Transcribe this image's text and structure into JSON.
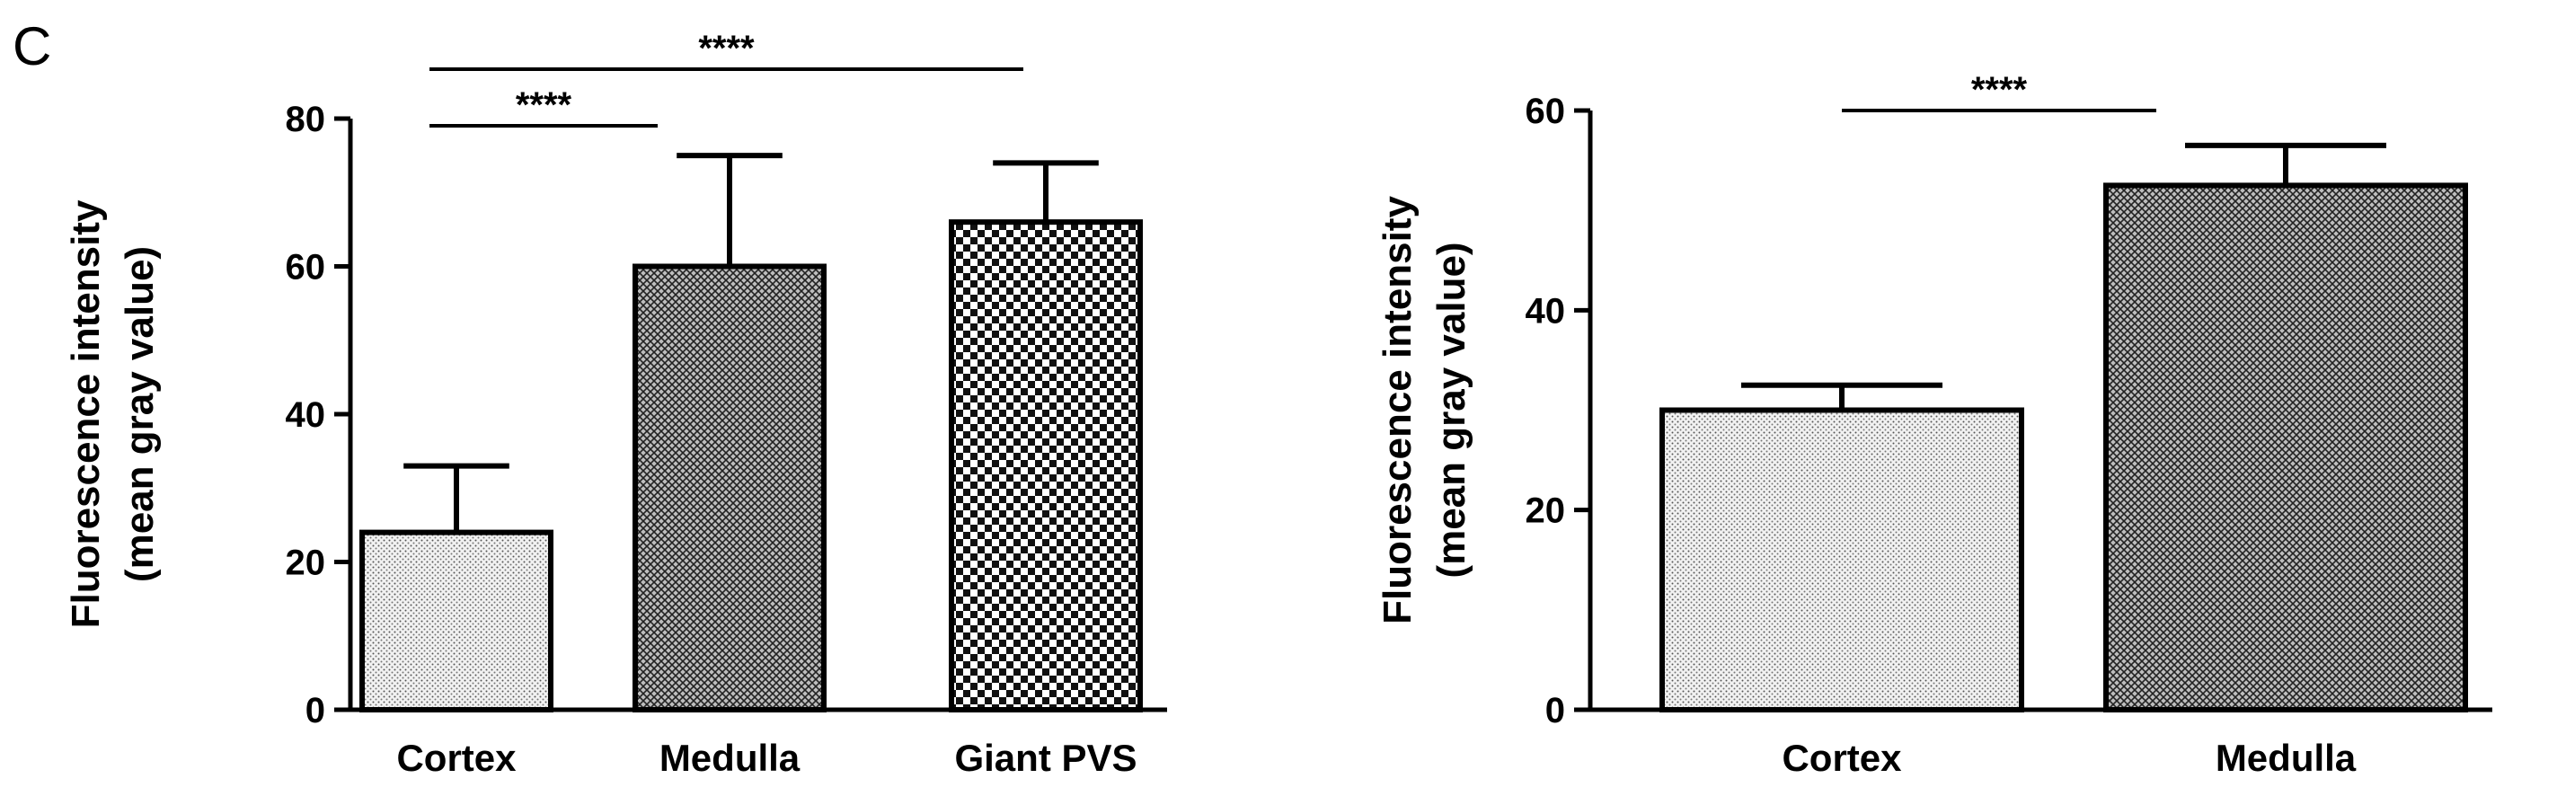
{
  "panel_label": "C",
  "chart_data": [
    {
      "type": "bar",
      "ylabel_line1": "Fluorescence intensity",
      "ylabel_line2": "(mean gray value)",
      "categories": [
        "Cortex",
        "Medulla",
        "Giant PVS"
      ],
      "values": [
        24,
        60,
        66
      ],
      "errors": [
        9,
        15,
        8
      ],
      "patterns": [
        "fine-dots",
        "cross-hatch",
        "checker"
      ],
      "ylim": [
        0,
        80
      ],
      "yticks": [
        "0",
        "20",
        "40",
        "60",
        "80"
      ],
      "ytick_values": [
        0,
        20,
        40,
        60,
        80
      ],
      "significance": [
        {
          "from": 0,
          "to": 1,
          "label": "****",
          "level": 1
        },
        {
          "from": 0,
          "to": 2,
          "label": "****",
          "level": 2
        }
      ]
    },
    {
      "type": "bar",
      "ylabel_line1": "Fluorescence intensity",
      "ylabel_line2": "(mean gray value)",
      "categories": [
        "Cortex",
        "Medulla"
      ],
      "values": [
        30,
        52.5
      ],
      "errors": [
        2.5,
        4
      ],
      "patterns": [
        "fine-dots",
        "cross-hatch"
      ],
      "ylim": [
        0,
        60
      ],
      "yticks": [
        "0",
        "20",
        "40",
        "60"
      ],
      "ytick_values": [
        0,
        20,
        40,
        60
      ],
      "significance": [
        {
          "from": 0,
          "to": 1,
          "label": "****",
          "level": 1
        }
      ]
    }
  ]
}
